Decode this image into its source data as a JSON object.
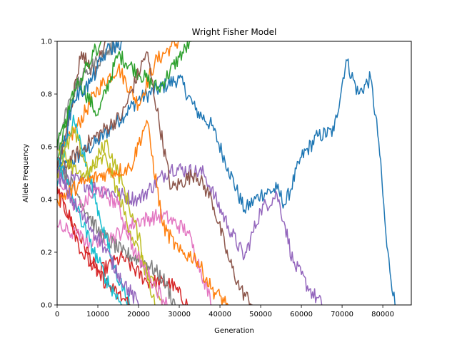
{
  "chart_data": {
    "type": "line",
    "title": "Wright Fisher Model",
    "xlabel": "Generation",
    "ylabel": "Allele Frequency",
    "xlim": [
      0,
      87000
    ],
    "ylim": [
      0,
      1
    ],
    "xticks": [
      0,
      10000,
      20000,
      30000,
      40000,
      50000,
      60000,
      70000,
      80000
    ],
    "yticks": [
      0.0,
      0.2,
      0.4,
      0.6,
      0.8,
      1.0
    ],
    "xtick_labels": [
      "0",
      "10000",
      "20000",
      "30000",
      "40000",
      "50000",
      "60000",
      "70000",
      "80000"
    ],
    "ytick_labels": [
      "0.0",
      "0.2",
      "0.4",
      "0.6",
      "0.8",
      "1.0"
    ],
    "grid": false,
    "legend": "none",
    "colors": [
      "#1f77b4",
      "#ff7f0e",
      "#2ca02c",
      "#d62728",
      "#9467bd",
      "#8c564b",
      "#e377c2",
      "#7f7f7f",
      "#bcbd22",
      "#17becf"
    ],
    "series": [
      {
        "color": "#1f77b4",
        "x": [
          0,
          10000,
          20000,
          30000,
          34000,
          38000,
          42000,
          46000,
          50000,
          54000,
          56000,
          60000,
          64000,
          68000,
          71000,
          74000,
          77000,
          79000,
          81000,
          83000
        ],
        "y": [
          0.5,
          0.62,
          0.78,
          0.86,
          0.74,
          0.68,
          0.52,
          0.36,
          0.42,
          0.44,
          0.38,
          0.56,
          0.64,
          0.66,
          0.93,
          0.8,
          0.86,
          0.62,
          0.22,
          0.0
        ]
      },
      {
        "color": "#ff7f0e",
        "x": [
          0,
          5000,
          10000,
          15000,
          20000,
          24000,
          28000,
          30000
        ],
        "y": [
          0.55,
          0.68,
          0.82,
          0.9,
          0.76,
          0.92,
          0.98,
          1.0
        ]
      },
      {
        "color": "#2ca02c",
        "x": [
          0,
          5000,
          10000,
          15000,
          20000,
          25000,
          30000,
          33000
        ],
        "y": [
          0.55,
          0.86,
          0.72,
          0.95,
          0.88,
          0.82,
          0.94,
          1.0
        ]
      },
      {
        "color": "#d62728",
        "x": [
          0,
          5000,
          10000,
          16000,
          22000,
          28000,
          32000
        ],
        "y": [
          0.42,
          0.28,
          0.12,
          0.18,
          0.09,
          0.08,
          0.0
        ]
      },
      {
        "color": "#9467bd",
        "x": [
          0,
          10000,
          20000,
          28000,
          36000,
          42000,
          46000,
          50000,
          54000,
          56000,
          58000,
          62000,
          65000
        ],
        "y": [
          0.5,
          0.44,
          0.4,
          0.52,
          0.5,
          0.3,
          0.18,
          0.36,
          0.42,
          0.3,
          0.16,
          0.06,
          0.0
        ]
      },
      {
        "color": "#8c564b",
        "x": [
          0,
          8000,
          16000,
          22000,
          28000,
          34000,
          38000,
          42000,
          45000,
          48000
        ],
        "y": [
          0.5,
          0.62,
          0.72,
          0.96,
          0.44,
          0.5,
          0.4,
          0.18,
          0.06,
          0.0
        ]
      },
      {
        "color": "#e377c2",
        "x": [
          0,
          8000,
          14000,
          20000,
          26000,
          32000,
          36000,
          38000
        ],
        "y": [
          0.3,
          0.24,
          0.26,
          0.32,
          0.34,
          0.28,
          0.1,
          0.0
        ]
      },
      {
        "color": "#7f7f7f",
        "x": [
          0,
          5000,
          10000,
          16000,
          22000,
          26000,
          29000
        ],
        "y": [
          0.55,
          0.42,
          0.28,
          0.2,
          0.16,
          0.1,
          0.0
        ]
      },
      {
        "color": "#bcbd22",
        "x": [
          0,
          6000,
          12000,
          18000,
          22000,
          26000
        ],
        "y": [
          0.6,
          0.48,
          0.56,
          0.28,
          0.12,
          0.0
        ]
      },
      {
        "color": "#17becf",
        "x": [
          0,
          4000,
          9000,
          14000,
          18000
        ],
        "y": [
          0.45,
          0.72,
          0.42,
          0.14,
          0.0
        ]
      },
      {
        "color": "#8c564b",
        "x": [
          0,
          3000,
          6000,
          9000,
          12000
        ],
        "y": [
          0.5,
          0.72,
          0.96,
          0.88,
          1.0
        ]
      },
      {
        "color": "#e377c2",
        "x": [
          0,
          5000,
          10000,
          15000,
          19000,
          23000,
          27000
        ],
        "y": [
          0.5,
          0.36,
          0.44,
          0.38,
          0.2,
          0.1,
          0.0
        ]
      },
      {
        "color": "#bcbd22",
        "x": [
          0,
          4000,
          8000,
          12000,
          16000,
          20000,
          24000
        ],
        "y": [
          0.5,
          0.66,
          0.5,
          0.62,
          0.46,
          0.26,
          0.0
        ]
      },
      {
        "color": "#d62728",
        "x": [
          0,
          3000,
          6000,
          10000,
          14000,
          18000
        ],
        "y": [
          0.45,
          0.34,
          0.2,
          0.12,
          0.05,
          0.0
        ]
      },
      {
        "color": "#17becf",
        "x": [
          0,
          4000,
          8000,
          12000,
          16000
        ],
        "y": [
          0.55,
          0.4,
          0.24,
          0.1,
          0.0
        ]
      },
      {
        "color": "#7f7f7f",
        "x": [
          0,
          3000,
          7000,
          11000,
          15000
        ],
        "y": [
          0.6,
          0.78,
          0.88,
          0.94,
          1.0
        ]
      },
      {
        "color": "#ff7f0e",
        "x": [
          0,
          6000,
          12000,
          18000,
          22000,
          26000,
          30000,
          34000,
          38000,
          42000
        ],
        "y": [
          0.4,
          0.46,
          0.5,
          0.52,
          0.7,
          0.3,
          0.2,
          0.18,
          0.06,
          0.0
        ]
      },
      {
        "color": "#2ca02c",
        "x": [
          0,
          3000,
          6000,
          9000,
          11000
        ],
        "y": [
          0.6,
          0.74,
          0.86,
          0.96,
          1.0
        ]
      },
      {
        "color": "#1f77b4",
        "x": [
          0,
          4000,
          8000,
          12000,
          16000
        ],
        "y": [
          0.5,
          0.78,
          0.84,
          0.96,
          1.0
        ]
      },
      {
        "color": "#9467bd",
        "x": [
          0,
          5000,
          10000,
          15000,
          20000
        ],
        "y": [
          0.5,
          0.36,
          0.26,
          0.12,
          0.0
        ]
      }
    ]
  }
}
